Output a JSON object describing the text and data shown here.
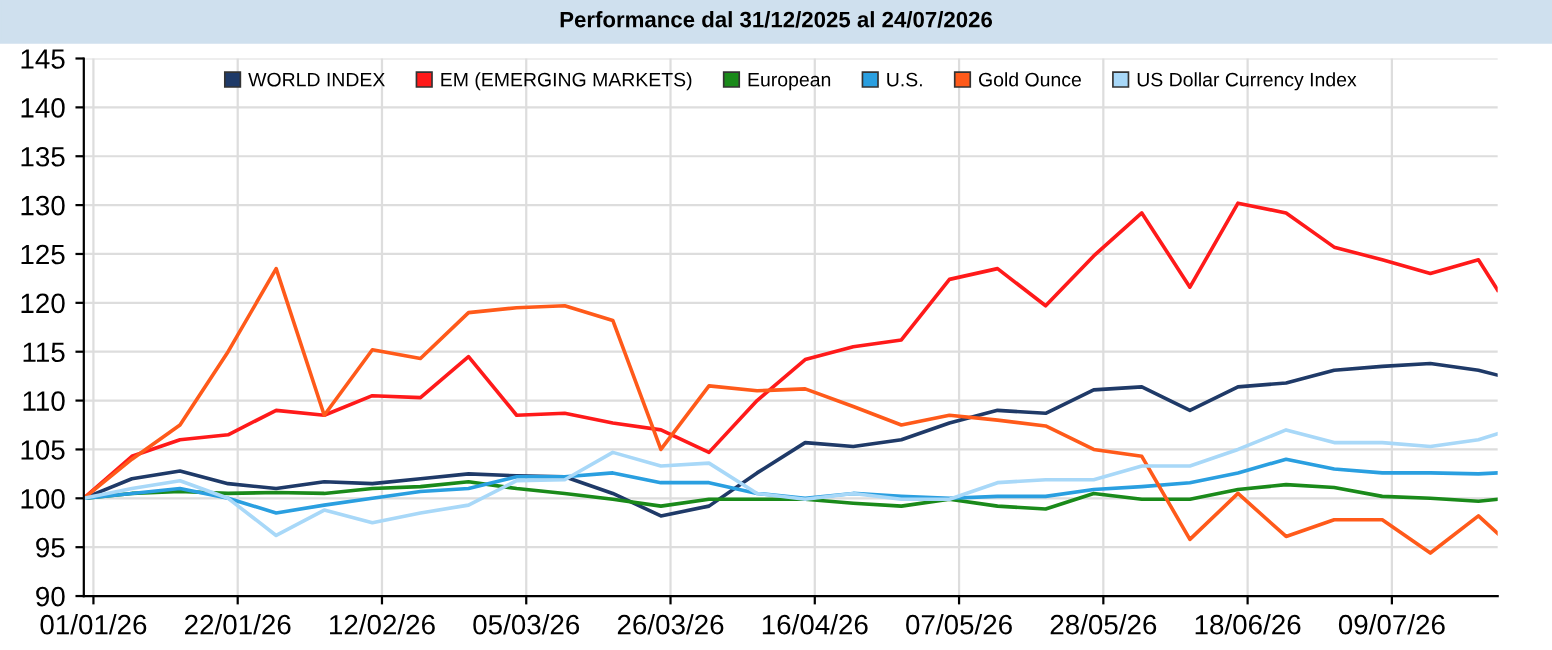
{
  "chart_data": {
    "type": "line",
    "title": "Performance dal 31/12/2025 al 24/07/2026",
    "x": [
      "2025-12-31",
      "2026-01-07",
      "2026-01-14",
      "2026-01-21",
      "2026-01-28",
      "2026-02-04",
      "2026-02-11",
      "2026-02-18",
      "2026-02-25",
      "2026-03-04",
      "2026-03-11",
      "2026-03-18",
      "2026-03-25",
      "2026-04-01",
      "2026-04-08",
      "2026-04-15",
      "2026-04-22",
      "2026-04-29",
      "2026-05-06",
      "2026-05-13",
      "2026-05-20",
      "2026-05-27",
      "2026-06-03",
      "2026-06-10",
      "2026-06-17",
      "2026-06-24",
      "2026-07-01",
      "2026-07-08",
      "2026-07-15",
      "2026-07-22",
      "2026-07-24"
    ],
    "series": [
      {
        "name": "WORLD INDEX",
        "color": "#1f3a68",
        "values": [
          100,
          102,
          102.8,
          101.5,
          101,
          101.7,
          101.5,
          102,
          102.5,
          102.3,
          102.2,
          100.5,
          98.2,
          99.2,
          102.6,
          105.7,
          105.3,
          106,
          107.7,
          109,
          108.7,
          111.1,
          111.4,
          109,
          111.4,
          111.8,
          113.1,
          113.5,
          113.8,
          113.1,
          112.6
        ]
      },
      {
        "name": "EM (EMERGING MARKETS)",
        "color": "#ff1a1a",
        "values": [
          100,
          104.3,
          106,
          106.5,
          109,
          108.5,
          110.5,
          110.3,
          114.5,
          108.5,
          108.7,
          107.7,
          107,
          104.7,
          110,
          114.2,
          115.5,
          116.2,
          122.4,
          123.5,
          119.7,
          124.8,
          129.2,
          121.6,
          130.2,
          129.2,
          125.7,
          124.4,
          123,
          124.4,
          121.3
        ]
      },
      {
        "name": "European",
        "color": "#1a8a1a",
        "values": [
          100,
          100.5,
          100.7,
          100.5,
          100.6,
          100.5,
          101,
          101.2,
          101.7,
          101,
          100.5,
          99.9,
          99.2,
          99.9,
          99.9,
          99.9,
          99.5,
          99.2,
          99.9,
          99.2,
          98.9,
          100.5,
          99.9,
          99.9,
          100.9,
          101.4,
          101.1,
          100.2,
          100,
          99.7,
          99.9
        ]
      },
      {
        "name": "U.S.",
        "color": "#2a9fe0",
        "values": [
          100,
          100.5,
          101,
          100,
          98.5,
          99.3,
          100,
          100.7,
          101,
          102.2,
          102.2,
          102.6,
          101.6,
          101.6,
          100.5,
          100,
          100.5,
          100.2,
          100,
          100.2,
          100.2,
          100.9,
          101.2,
          101.6,
          102.6,
          104,
          103,
          102.6,
          102.6,
          102.5,
          102.6
        ]
      },
      {
        "name": "Gold Ounce",
        "color": "#ff5a1a",
        "values": [
          100,
          104,
          107.5,
          115,
          123.5,
          108.5,
          115.2,
          114.3,
          119,
          119.5,
          119.7,
          118.2,
          105,
          111.5,
          111,
          111.2,
          109.4,
          107.5,
          108.5,
          108,
          107.4,
          105,
          104.3,
          95.8,
          100.5,
          96.1,
          97.8,
          97.8,
          94.4,
          98.2,
          96.4
        ]
      },
      {
        "name": "US Dollar Currency Index",
        "color": "#a8d8f8",
        "values": [
          100,
          101,
          101.8,
          100,
          96.2,
          98.8,
          97.5,
          98.5,
          99.3,
          101.8,
          101.9,
          104.7,
          103.3,
          103.6,
          100.5,
          99.9,
          100.5,
          99.9,
          99.9,
          101.6,
          101.9,
          101.9,
          103.3,
          103.3,
          105,
          107,
          105.7,
          105.7,
          105.3,
          106,
          106.6
        ]
      }
    ],
    "xlim": [
      "2025-12-31",
      "2026-07-24"
    ],
    "xticks": [
      {
        "value": "2026-01-01",
        "label": "01/01/26"
      },
      {
        "value": "2026-01-22",
        "label": "22/01/26"
      },
      {
        "value": "2026-02-12",
        "label": "12/02/26"
      },
      {
        "value": "2026-03-05",
        "label": "05/03/26"
      },
      {
        "value": "2026-03-26",
        "label": "26/03/26"
      },
      {
        "value": "2026-04-16",
        "label": "16/04/26"
      },
      {
        "value": "2026-05-07",
        "label": "07/05/26"
      },
      {
        "value": "2026-05-28",
        "label": "28/05/26"
      },
      {
        "value": "2026-06-18",
        "label": "18/06/26"
      },
      {
        "value": "2026-07-09",
        "label": "09/07/26"
      }
    ],
    "ylim": [
      90,
      145
    ],
    "yticks": [
      90,
      95,
      100,
      105,
      110,
      115,
      120,
      125,
      130,
      135,
      140,
      145
    ],
    "grid": true,
    "legend": "top",
    "marker": "none",
    "line_style": "solid"
  }
}
